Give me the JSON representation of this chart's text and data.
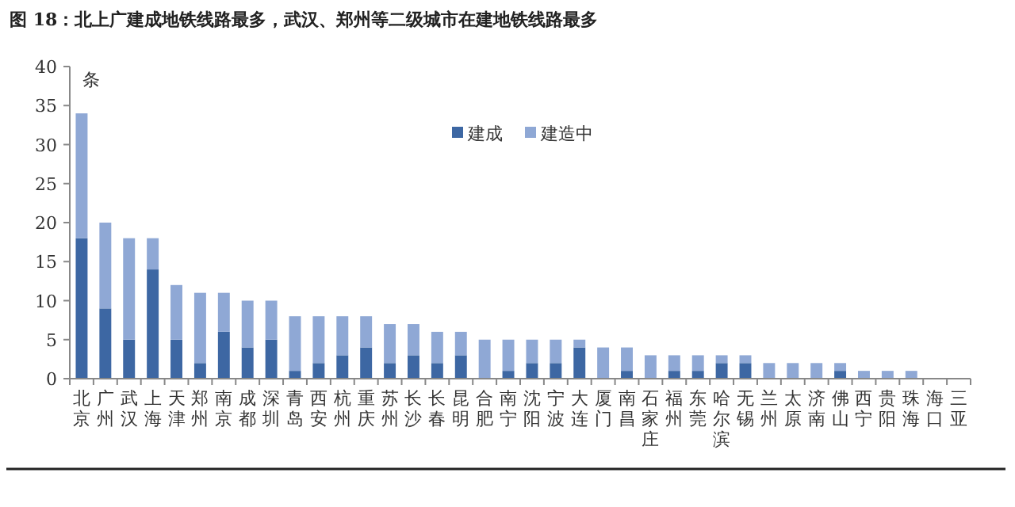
{
  "chart_data": {
    "type": "bar",
    "title": "图 18：北上广建成地铁线路最多，武汉、郑州等二级城市在建地铁线路最多",
    "ylabel": "条",
    "categories": [
      "北京",
      "广州",
      "武汉",
      "上海",
      "天津",
      "郑州",
      "南京",
      "成都",
      "深圳",
      "青岛",
      "西安",
      "杭州",
      "重庆",
      "苏州",
      "长沙",
      "长春",
      "昆明",
      "合肥",
      "南宁",
      "沈阳",
      "宁波",
      "大连",
      "厦门",
      "南昌",
      "石家庄",
      "福州",
      "东莞",
      "哈尔滨",
      "无锡",
      "兰州",
      "太原",
      "济南",
      "佛山",
      "西宁",
      "贵阳",
      "珠海",
      "海口",
      "三亚"
    ],
    "stacked": true,
    "series": [
      {
        "name": "建成",
        "color": "#3d67a3",
        "values": [
          18,
          9,
          5,
          14,
          5,
          2,
          6,
          4,
          5,
          1,
          2,
          3,
          4,
          2,
          3,
          2,
          3,
          0,
          1,
          2,
          2,
          4,
          0,
          1,
          0,
          1,
          1,
          2,
          2,
          0,
          0,
          0,
          1,
          0,
          0,
          0,
          0,
          0
        ]
      },
      {
        "name": "建造中",
        "color": "#8fa8d5",
        "values": [
          16,
          11,
          13,
          4,
          7,
          9,
          5,
          6,
          5,
          7,
          6,
          5,
          4,
          5,
          4,
          4,
          3,
          5,
          4,
          3,
          3,
          1,
          4,
          3,
          3,
          2,
          2,
          1,
          1,
          2,
          2,
          2,
          1,
          1,
          1,
          1,
          0,
          0
        ]
      }
    ],
    "ylim": [
      0,
      40
    ],
    "yticks": [
      0,
      5,
      10,
      15,
      20,
      25,
      30,
      35,
      40
    ],
    "legend": "top"
  }
}
